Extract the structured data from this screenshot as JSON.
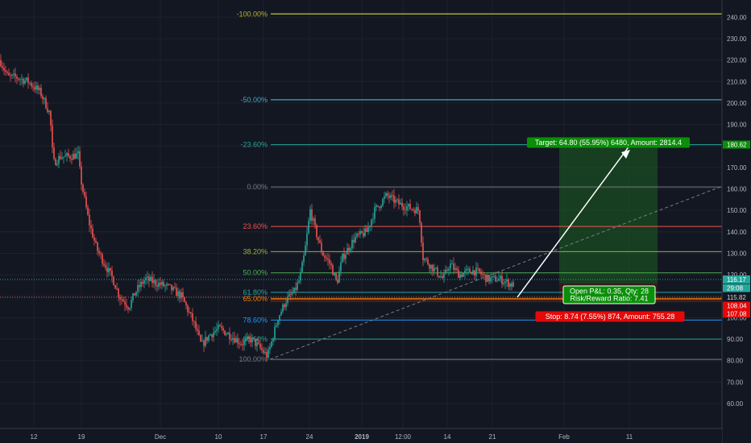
{
  "colors": {
    "background": "#131722",
    "grid": "#1e222d",
    "axis_text": "#b2b5be",
    "candle_up": "#26a69a",
    "candle_down": "#ef5350",
    "target_zone": "#1b5e20",
    "stop_zone": "#4a1a1a",
    "target_label_bg": "#0a8f08",
    "stop_label_bg": "#e30909"
  },
  "fib_levels": [
    {
      "label": "-100.00%",
      "price": 241.5,
      "color": "#b5b52a",
      "width": 1.4
    },
    {
      "label": "-50.00%",
      "price": 201.5,
      "color": "#4aa0c4",
      "width": 1.2
    },
    {
      "label": "-23.60%",
      "price": 180.6,
      "color": "#26a69a",
      "width": 1.0
    },
    {
      "label": "0.00%",
      "price": 160.9,
      "color": "#787b86",
      "width": 1.0
    },
    {
      "label": "23.60%",
      "price": 142.5,
      "color": "#ef5350",
      "width": 1.0
    },
    {
      "label": "38.20%",
      "price": 130.8,
      "color": "#9cac3c",
      "width": 1.0
    },
    {
      "label": "50.00%",
      "price": 120.9,
      "color": "#4caf50",
      "width": 1.0
    },
    {
      "label": "61.80%",
      "price": 111.8,
      "color": "#26a69a",
      "width": 1.0
    },
    {
      "label": "65.00%",
      "price": 108.8,
      "color": "#f57c00",
      "width": 1.4
    },
    {
      "label": "78.60%",
      "price": 98.9,
      "color": "#2196f3",
      "width": 1.0
    },
    {
      "label": "88.60%",
      "price": 90.0,
      "color": "#26a69a",
      "width": 1.0
    },
    {
      "label": "100.00%",
      "price": 80.6,
      "color": "#787b86",
      "width": 1.0
    }
  ],
  "price_axis": {
    "ticks": [
      "240.00",
      "230.00",
      "220.00",
      "210.00",
      "200.00",
      "190.00",
      "180.00",
      "170.00",
      "160.00",
      "150.00",
      "140.00",
      "130.00",
      "120.00",
      "110.00",
      "100.00",
      "90.00",
      "80.00",
      "70.00",
      "60.00"
    ],
    "tick_values": [
      240,
      230,
      220,
      210,
      200,
      190,
      180,
      170,
      160,
      150,
      140,
      130,
      120,
      110,
      100,
      90,
      80,
      70,
      60
    ],
    "tags": [
      {
        "text": "180.62",
        "price": 180.62,
        "bg": "#0a8f08",
        "fg": "#ffffff"
      },
      {
        "text": "116.17",
        "price": 117.8,
        "bg": "#26a69a",
        "fg": "#ffffff"
      },
      {
        "text": "29:08",
        "price": 113.8,
        "bg": "#26a69a",
        "fg": "#ffffff"
      },
      {
        "text": "115.82",
        "price": 109.5,
        "bg": "#131722",
        "fg": "#d1d4dc"
      },
      {
        "text": "108.04",
        "price": 105.6,
        "bg": "#e30909",
        "fg": "#ffffff"
      },
      {
        "text": "107.08",
        "price": 101.9,
        "bg": "#e30909",
        "fg": "#ffffff"
      }
    ]
  },
  "time_axis": {
    "labels": [
      {
        "text": "12",
        "bold": false
      },
      {
        "text": "19",
        "bold": false
      },
      {
        "text": "Dec",
        "bold": false
      },
      {
        "text": "10",
        "bold": false
      },
      {
        "text": "17",
        "bold": false
      },
      {
        "text": "24",
        "bold": false
      },
      {
        "text": "2019",
        "bold": true
      },
      {
        "text": "12:00",
        "bold": false
      },
      {
        "text": "14",
        "bold": false
      },
      {
        "text": "21",
        "bold": false
      },
      {
        "text": "Feb",
        "bold": false
      },
      {
        "text": "11",
        "bold": false
      }
    ]
  },
  "position": {
    "entry": 115.82,
    "target_label": "Target: 64.80 (55.95%) 6480, Amount: 2814.4",
    "stop_label": "Stop: 8.74 (7.55%) 874, Amount: 755.28",
    "pnl_line1": "Open P&L: 0.35, Qty: 28",
    "pnl_line2": "Risk/Reward Ratio: 7.41"
  }
}
